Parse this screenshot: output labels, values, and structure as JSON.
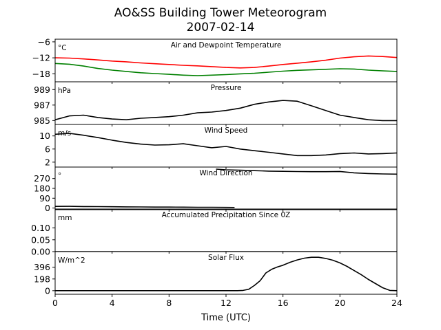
{
  "figure": {
    "title_line1": "AO&SS Building Tower Meteorogram",
    "title_line2": "2007-02-14",
    "xlabel": "Time (UTC)"
  },
  "chart_data": {
    "type": "line",
    "x_ticks": [
      "0",
      "4",
      "8",
      "12",
      "16",
      "20",
      "24"
    ],
    "xlim": [
      0,
      24
    ],
    "panels": [
      {
        "title": "Air and Dewpoint Temperature",
        "unit": "°C",
        "ylim": [
          -21,
          -5
        ],
        "yticks": [
          -6,
          -12,
          -18
        ],
        "ytick_labels": [
          "−6",
          "−12",
          "−18"
        ],
        "series": [
          {
            "color": "#ff0000",
            "x": [
              0,
              1,
              2,
              3,
              4,
              5,
              6,
              7,
              8,
              9,
              10,
              11,
              12,
              13,
              14,
              15,
              16,
              17,
              18,
              19,
              20,
              21,
              22,
              23,
              24
            ],
            "y": [
              -12.0,
              -12.1,
              -12.4,
              -12.8,
              -13.2,
              -13.5,
              -13.9,
              -14.2,
              -14.5,
              -14.8,
              -15.0,
              -15.3,
              -15.6,
              -15.8,
              -15.6,
              -15.1,
              -14.5,
              -14.0,
              -13.5,
              -12.9,
              -12.1,
              -11.6,
              -11.3,
              -11.5,
              -11.9
            ]
          },
          {
            "color": "#008000",
            "x": [
              0,
              1,
              2,
              3,
              4,
              5,
              6,
              7,
              8,
              9,
              10,
              11,
              12,
              13,
              14,
              15,
              16,
              17,
              18,
              19,
              20,
              21,
              22,
              23,
              24
            ],
            "y": [
              -14.1,
              -14.4,
              -15.1,
              -16.0,
              -16.6,
              -17.1,
              -17.6,
              -17.9,
              -18.2,
              -18.5,
              -18.7,
              -18.5,
              -18.3,
              -18.0,
              -17.8,
              -17.4,
              -17.0,
              -16.7,
              -16.5,
              -16.3,
              -16.1,
              -16.2,
              -16.6,
              -16.9,
              -17.1
            ]
          }
        ]
      },
      {
        "title": "Pressure",
        "unit": "hPa",
        "ylim": [
          984.5,
          990
        ],
        "yticks": [
          989,
          987,
          985
        ],
        "ytick_labels": [
          "989",
          "987",
          "985"
        ],
        "series": [
          {
            "color": "#000000",
            "x": [
              0,
              1,
              2,
              3,
              4,
              5,
              6,
              7,
              8,
              9,
              10,
              11,
              12,
              13,
              14,
              15,
              16,
              17,
              18,
              19,
              20,
              21,
              22,
              23,
              24
            ],
            "y": [
              985.1,
              985.6,
              985.7,
              985.4,
              985.2,
              985.1,
              985.3,
              985.4,
              985.5,
              985.7,
              986.0,
              986.1,
              986.3,
              986.6,
              987.1,
              987.4,
              987.6,
              987.5,
              986.9,
              986.3,
              985.7,
              985.4,
              985.1,
              985.0,
              985.0
            ]
          }
        ]
      },
      {
        "title": "Wind Speed",
        "unit": "m/s",
        "ylim": [
          0.5,
          13.5
        ],
        "yticks": [
          10,
          6,
          2
        ],
        "ytick_labels": [
          "10",
          "6",
          "2"
        ],
        "series": [
          {
            "color": "#000000",
            "x": [
              0,
              1,
              2,
              3,
              4,
              5,
              6,
              7,
              8,
              9,
              10,
              11,
              12,
              13,
              14,
              15,
              16,
              17,
              18,
              19,
              20,
              21,
              22,
              23,
              24
            ],
            "y": [
              10.5,
              10.8,
              10.2,
              9.5,
              8.7,
              8.0,
              7.5,
              7.2,
              7.3,
              7.6,
              7.0,
              6.4,
              6.8,
              6.0,
              5.5,
              5.0,
              4.5,
              4.0,
              4.0,
              4.2,
              4.6,
              4.8,
              4.5,
              4.6,
              4.8
            ]
          }
        ]
      },
      {
        "title": "Wind Direction",
        "unit": "°",
        "ylim": [
          -15,
          375
        ],
        "yticks": [
          270,
          180,
          90,
          0
        ],
        "ytick_labels": [
          "270",
          "180",
          "90",
          "0"
        ],
        "series": [
          {
            "color": "#000000",
            "x": [
              0,
              1,
              2,
              3,
              4,
              5,
              6,
              7,
              8,
              9,
              10,
              11,
              12,
              12.6
            ],
            "y": [
              15,
              16,
              14,
              13,
              12,
              11,
              10,
              9,
              9,
              8,
              7,
              7,
              6,
              5
            ]
          },
          {
            "color": "#000000",
            "x": [
              11.3,
              12,
              13,
              14,
              15,
              16,
              17,
              18,
              19,
              20,
              21,
              22,
              23,
              24
            ],
            "y": [
              356,
              350,
              346,
              342,
              338,
              336,
              334,
              333,
              333,
              335,
              322,
              316,
              312,
              310
            ]
          }
        ]
      },
      {
        "title": "Accumulated Precipitation Since 0Z",
        "unit": "mm",
        "ylim": [
          0,
          0.18
        ],
        "yticks": [
          0.1,
          0.05,
          0.0
        ],
        "ytick_labels": [
          "0.10",
          "0.05",
          "0.00"
        ],
        "series": [
          {
            "color": "#000000",
            "x": [
              0,
              24
            ],
            "y": [
              0,
              0
            ]
          }
        ]
      },
      {
        "title": "Solar Flux",
        "unit": "W/m^2",
        "ylim": [
          -60,
          660
        ],
        "yticks": [
          396,
          198,
          0
        ],
        "ytick_labels": [
          "396",
          "198",
          "0"
        ],
        "series": [
          {
            "color": "#000000",
            "x": [
              0,
              12.8,
              13.2,
              13.6,
              14.0,
              14.4,
              14.8,
              15.2,
              15.6,
              16.0,
              16.5,
              17.0,
              17.5,
              18.0,
              18.5,
              19.0,
              19.5,
              20.0,
              20.5,
              21.0,
              21.5,
              22.0,
              22.5,
              23.0,
              23.5,
              24.0
            ],
            "y": [
              0,
              0,
              5,
              25,
              90,
              170,
              300,
              360,
              400,
              430,
              480,
              520,
              550,
              565,
              565,
              545,
              515,
              470,
              410,
              340,
              270,
              190,
              120,
              50,
              5,
              0
            ]
          }
        ]
      }
    ]
  }
}
